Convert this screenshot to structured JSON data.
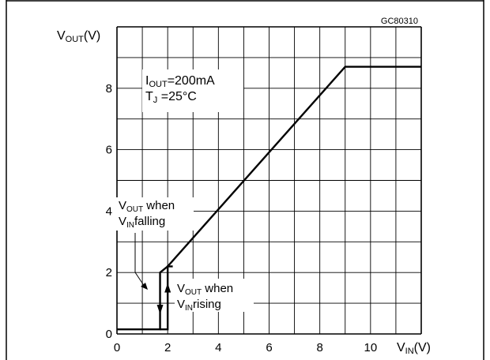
{
  "chart_data": {
    "type": "line",
    "figure_code": "GC80310",
    "y_axis_title": {
      "main": "V",
      "sub": "OUT",
      "unit": "(V)"
    },
    "x_axis_title": {
      "main": "V",
      "sub": "IN",
      "unit": "(V)"
    },
    "xlim": [
      0,
      12
    ],
    "ylim": [
      0,
      10
    ],
    "x_major_ticks": [
      0,
      2,
      4,
      6,
      8,
      10
    ],
    "y_major_ticks": [
      0,
      2,
      4,
      6,
      8
    ],
    "grid": true,
    "conditions": [
      {
        "main": "I",
        "sub": "OUT",
        "rest": "=200mA"
      },
      {
        "main": "T",
        "sub": "J",
        "rest": " =25°C"
      }
    ],
    "series": [
      {
        "x": [
          0,
          1.7,
          1.7,
          2.0,
          9.0,
          12.0
        ],
        "y": [
          0.15,
          0.15,
          2.0,
          2.2,
          8.7,
          8.7
        ]
      },
      {
        "x": [
          1.7,
          2.0,
          2.0,
          2.2
        ],
        "y": [
          0.15,
          0.15,
          2.2,
          2.2
        ]
      }
    ],
    "annotations": {
      "falling": {
        "line1_main": "V",
        "line1_sub": "OUT",
        "line1_rest": " when",
        "line2_main": "V",
        "line2_sub": "IN",
        "line2_rest": "falling"
      },
      "rising": {
        "line1_main": "V",
        "line1_sub": "OUT",
        "line1_rest": " when",
        "line2_main": "V",
        "line2_sub": "IN",
        "line2_rest": "rising"
      }
    }
  }
}
